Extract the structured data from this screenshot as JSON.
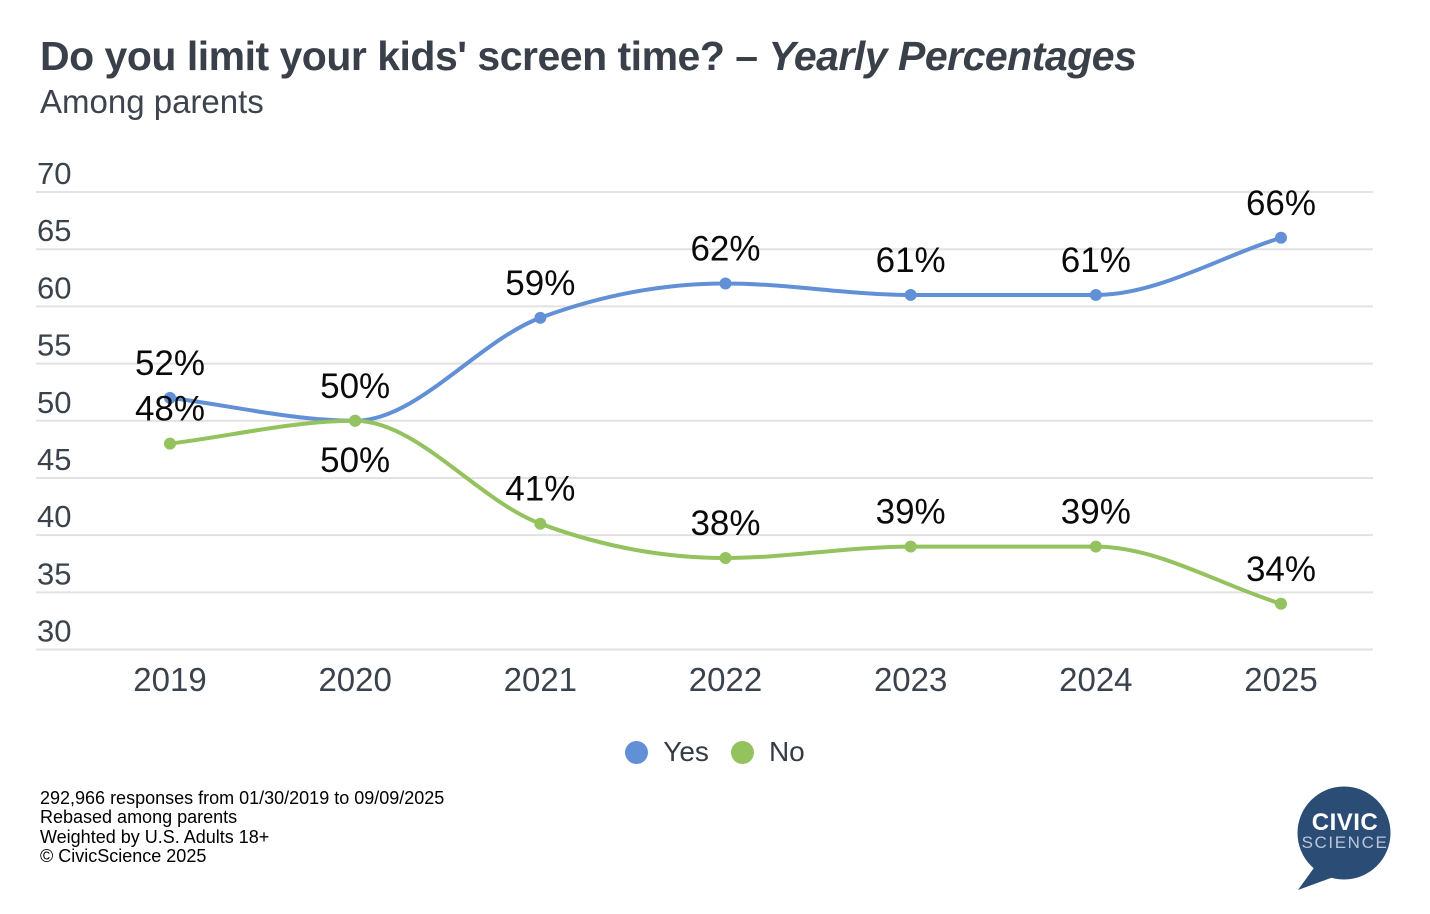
{
  "header": {
    "title_main": "Do you limit your kids' screen time?",
    "title_separator": "–",
    "title_emphasis": "Yearly Percentages",
    "subtitle": "Among parents"
  },
  "chart_data": {
    "type": "line",
    "title": "Do you limit your kids' screen time? – Yearly Percentages",
    "subtitle": "Among parents",
    "categories": [
      "2019",
      "2020",
      "2021",
      "2022",
      "2023",
      "2024",
      "2025"
    ],
    "series": [
      {
        "name": "Yes",
        "color": "#6190d7",
        "values": [
          52,
          50,
          59,
          62,
          61,
          61,
          66
        ],
        "point_labels": [
          "52%",
          "50%",
          "59%",
          "62%",
          "61%",
          "61%",
          "66%"
        ],
        "label_side": [
          "above",
          "above",
          "above",
          "above",
          "above",
          "above",
          "above"
        ]
      },
      {
        "name": "No",
        "color": "#93c25e",
        "values": [
          48,
          50,
          41,
          38,
          39,
          39,
          34
        ],
        "point_labels": [
          "48%",
          "50%",
          "41%",
          "38%",
          "39%",
          "39%",
          "34%"
        ],
        "label_side": [
          "above",
          "below",
          "above",
          "above",
          "above",
          "above",
          "above"
        ]
      }
    ],
    "ylim": [
      30,
      70
    ],
    "yticks": [
      30,
      35,
      40,
      45,
      50,
      55,
      60,
      65,
      70
    ],
    "grid": true,
    "legend_position": "bottom",
    "colors": {
      "background": "#ffffff",
      "gridline": "#e2e2e2",
      "axis_text": "#3a424c",
      "data_label": "#0a0a0a",
      "title_text": "#394049",
      "legend_text": "#353c46"
    }
  },
  "footnotes": {
    "line1": "292,966 responses from 01/30/2019 to 09/09/2025",
    "line2": "Rebased among parents",
    "line3": "Weighted by U.S. Adults 18+",
    "line4": "© CivicScience 2025"
  },
  "logo": {
    "top_text": "CIVIC",
    "bottom_text": "SCIENCE",
    "bubble_color": "#2b4c74",
    "top_text_color": "#ffffff",
    "bottom_text_color": "#b9c7da"
  }
}
